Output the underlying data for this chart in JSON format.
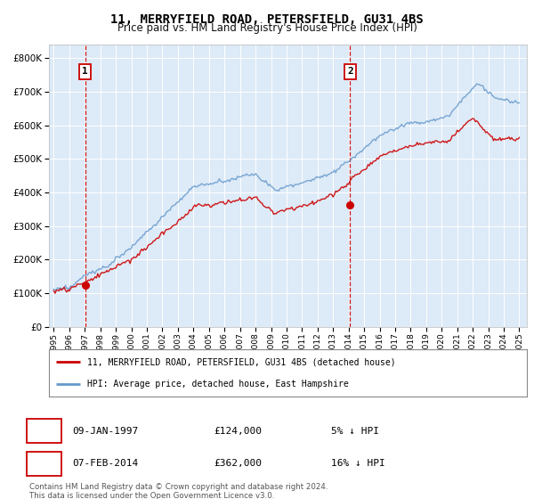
{
  "title": "11, MERRYFIELD ROAD, PETERSFIELD, GU31 4BS",
  "subtitle": "Price paid vs. HM Land Registry's House Price Index (HPI)",
  "ytick_values": [
    0,
    100000,
    200000,
    300000,
    400000,
    500000,
    600000,
    700000,
    800000
  ],
  "ylim": [
    0,
    840000
  ],
  "xlim_start": 1994.7,
  "xlim_end": 2025.5,
  "sale1_x": 1997.03,
  "sale1_y": 124000,
  "sale1_label": "1",
  "sale2_x": 2014.1,
  "sale2_y": 362000,
  "sale2_label": "2",
  "line_color_red": "#cc0000",
  "line_color_blue": "#6699cc",
  "dashed_color": "#cc0000",
  "plot_bg": "#ddeaf7",
  "legend_label_red": "11, MERRYFIELD ROAD, PETERSFIELD, GU31 4BS (detached house)",
  "legend_label_blue": "HPI: Average price, detached house, East Hampshire",
  "annotation1_date": "09-JAN-1997",
  "annotation1_price": "£124,000",
  "annotation1_hpi": "5% ↓ HPI",
  "annotation2_date": "07-FEB-2014",
  "annotation2_price": "£362,000",
  "annotation2_hpi": "16% ↓ HPI",
  "footer": "Contains HM Land Registry data © Crown copyright and database right 2024.\nThis data is licensed under the Open Government Licence v3.0.",
  "xtick_years": [
    1995,
    1996,
    1997,
    1998,
    1999,
    2000,
    2001,
    2002,
    2003,
    2004,
    2005,
    2006,
    2007,
    2008,
    2009,
    2010,
    2011,
    2012,
    2013,
    2014,
    2015,
    2016,
    2017,
    2018,
    2019,
    2020,
    2021,
    2022,
    2023,
    2024,
    2025
  ]
}
